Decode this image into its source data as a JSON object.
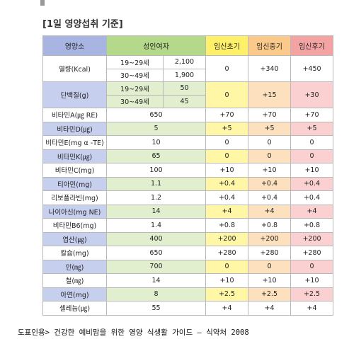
{
  "title": "[1일 영양섭취 기준]",
  "table": {
    "headers": [
      "영양소",
      "성인여자",
      "임신초기",
      "임신중기",
      "임신후기"
    ],
    "rows": [
      {
        "nutrient": "열량(Kcal)",
        "adult": [
          {
            "age": "19~29세",
            "value": "2,100"
          },
          {
            "age": "30~49세",
            "value": "1,900"
          }
        ],
        "early": "0",
        "mid": "+340",
        "late": "+450"
      },
      {
        "nutrient": "단백질(g)",
        "adult": [
          {
            "age": "19~29세",
            "value": "50"
          },
          {
            "age": "30~49세",
            "value": "45"
          }
        ],
        "early": "0",
        "mid": "+15",
        "late": "+30"
      },
      {
        "nutrient": "비타민A(㎍ RE)",
        "adult": "650",
        "early": "+70",
        "mid": "+70",
        "late": "+70"
      },
      {
        "nutrient": "비타민D(㎍)",
        "adult": "5",
        "early": "+5",
        "mid": "+5",
        "late": "+5"
      },
      {
        "nutrient": "비타민E(mg α -TE)",
        "adult": "10",
        "early": "0",
        "mid": "0",
        "late": "0"
      },
      {
        "nutrient": "비타민K(㎍)",
        "adult": "65",
        "early": "0",
        "mid": "0",
        "late": "0"
      },
      {
        "nutrient": "비타민C(mg)",
        "adult": "100",
        "early": "+10",
        "mid": "+10",
        "late": "+10"
      },
      {
        "nutrient": "티아민(mg)",
        "adult": "1.1",
        "early": "+0.4",
        "mid": "+0.4",
        "late": "+0.4"
      },
      {
        "nutrient": "리보플라빈(mg)",
        "adult": "1.2",
        "early": "+0.4",
        "mid": "+0.4",
        "late": "+0.4"
      },
      {
        "nutrient": "나이아신(mg NE)",
        "adult": "14",
        "early": "+4",
        "mid": "+4",
        "late": "+4"
      },
      {
        "nutrient": "비타민B6(mg)",
        "adult": "1.4",
        "early": "+0.8",
        "mid": "+0.8",
        "late": "+0.8"
      },
      {
        "nutrient": "엽산(㎍)",
        "adult": "400",
        "early": "+200",
        "mid": "+200",
        "late": "+200"
      },
      {
        "nutrient": "칼슘(mg)",
        "adult": "650",
        "early": "+280",
        "mid": "+280",
        "late": "+280"
      },
      {
        "nutrient": "인(㎎)",
        "adult": "700",
        "early": "0",
        "mid": "0",
        "late": "0"
      },
      {
        "nutrient": "철(㎎)",
        "adult": "14",
        "early": "+10",
        "mid": "+10",
        "late": "+10"
      },
      {
        "nutrient": "아연(mg)",
        "adult": "8",
        "early": "+2.5",
        "mid": "+2.5",
        "late": "+2.5"
      },
      {
        "nutrient": "셀레늄(㎍)",
        "adult": "55",
        "early": "+4",
        "mid": "+4",
        "late": "+4"
      }
    ]
  },
  "caption": "도표인용> 건강한 예비맘을 위한 영양 식생활 가이드 – 식약처 2008"
}
